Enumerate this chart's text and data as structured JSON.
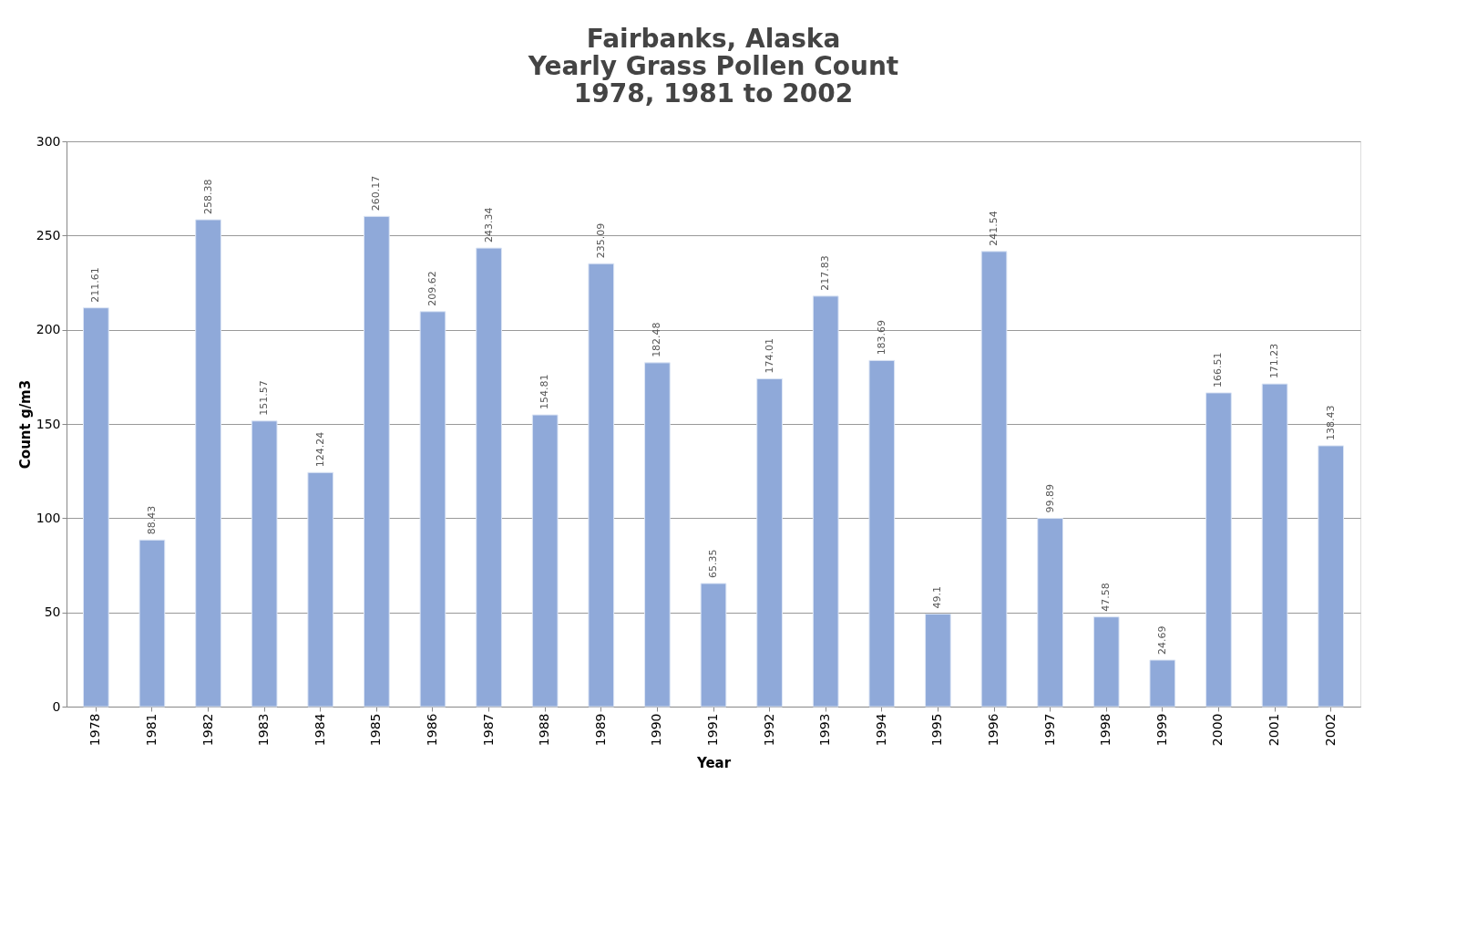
{
  "chart_data": {
    "type": "bar",
    "title": "Fairbanks, Alaska\nYearly Grass Pollen Count\n1978, 1981 to 2002",
    "xlabel": "Year",
    "ylabel": "Count g/m3",
    "categories": [
      "1978",
      "1981",
      "1982",
      "1983",
      "1984",
      "1985",
      "1986",
      "1987",
      "1988",
      "1989",
      "1990",
      "1991",
      "1992",
      "1993",
      "1994",
      "1995",
      "1996",
      "1997",
      "1998",
      "1999",
      "2000",
      "2001",
      "2002"
    ],
    "values": [
      211.61,
      88.43,
      258.38,
      151.57,
      124.24,
      260.17,
      209.62,
      243.34,
      154.81,
      235.09,
      182.48,
      65.35,
      174.01,
      217.83,
      183.69,
      49.1,
      241.54,
      99.89,
      47.58,
      24.69,
      166.51,
      171.23,
      138.43
    ],
    "color": "#8fa9d9",
    "ylim": [
      0,
      300
    ],
    "yticks": [
      0,
      50,
      100,
      150,
      200,
      250,
      300
    ],
    "grid": "y",
    "data_labels": true
  }
}
